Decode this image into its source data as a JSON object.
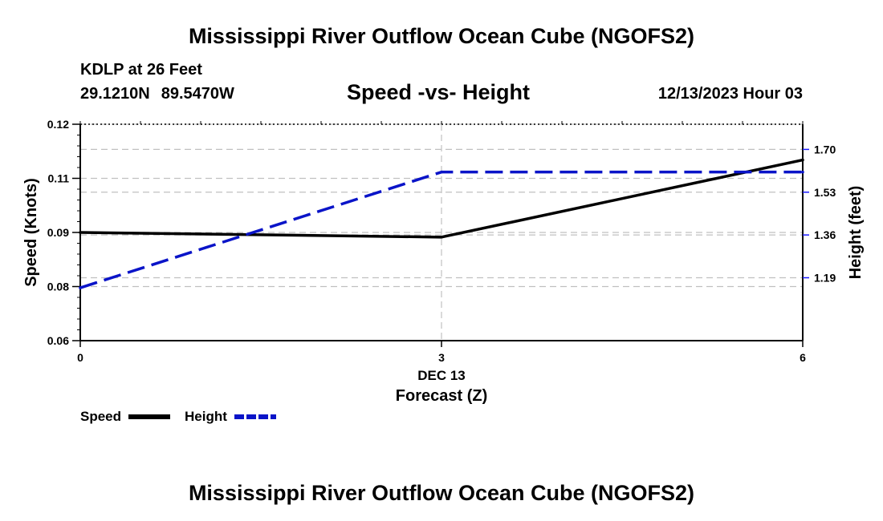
{
  "header": {
    "title": "Mississippi River Outflow Ocean Cube (NGOFS2)",
    "station": "KDLP at 26 Feet",
    "lat": "29.1210N",
    "lon": "89.5470W",
    "subtitle": "Speed -vs- Height",
    "timestamp": "12/13/2023 Hour 03"
  },
  "footer": {
    "title": "Mississippi River Outflow Ocean Cube (NGOFS2)"
  },
  "chart_data": {
    "type": "line",
    "title": "Speed -vs- Height",
    "x": [
      0,
      3,
      6
    ],
    "xlim": [
      0,
      6
    ],
    "x_ticks": [
      {
        "value": 0,
        "label": "0"
      },
      {
        "value": 3,
        "label": "3"
      },
      {
        "value": 6,
        "label": "6"
      }
    ],
    "x_date_label": "DEC 13",
    "xlabel": "Forecast (Z)",
    "ylabel": "Speed (Knots)",
    "ylim": [
      0.06,
      0.12
    ],
    "y_ticks": [
      {
        "value": 0.06,
        "label": "0.06"
      },
      {
        "value": 0.075,
        "label": "0.08"
      },
      {
        "value": 0.09,
        "label": "0.09"
      },
      {
        "value": 0.105,
        "label": "0.11"
      },
      {
        "value": 0.12,
        "label": "0.12"
      }
    ],
    "y2label": "Height (feet)",
    "y2lim": [
      0.94,
      1.8
    ],
    "y2_ticks": [
      {
        "value": 1.19,
        "label": "1.19"
      },
      {
        "value": 1.36,
        "label": "1.36"
      },
      {
        "value": 1.53,
        "label": "1.53"
      },
      {
        "value": 1.7,
        "label": "1.70"
      }
    ],
    "series": [
      {
        "name": "Speed",
        "axis": "left",
        "color": "#000000",
        "dash": "solid",
        "values": [
          0.09,
          0.0887,
          0.1101
        ]
      },
      {
        "name": "Height",
        "axis": "right",
        "color": "#0a14c8",
        "dash": "dashed",
        "values": [
          1.15,
          1.61,
          1.61
        ]
      }
    ],
    "legend_position": "bottom-left",
    "grid": true
  }
}
